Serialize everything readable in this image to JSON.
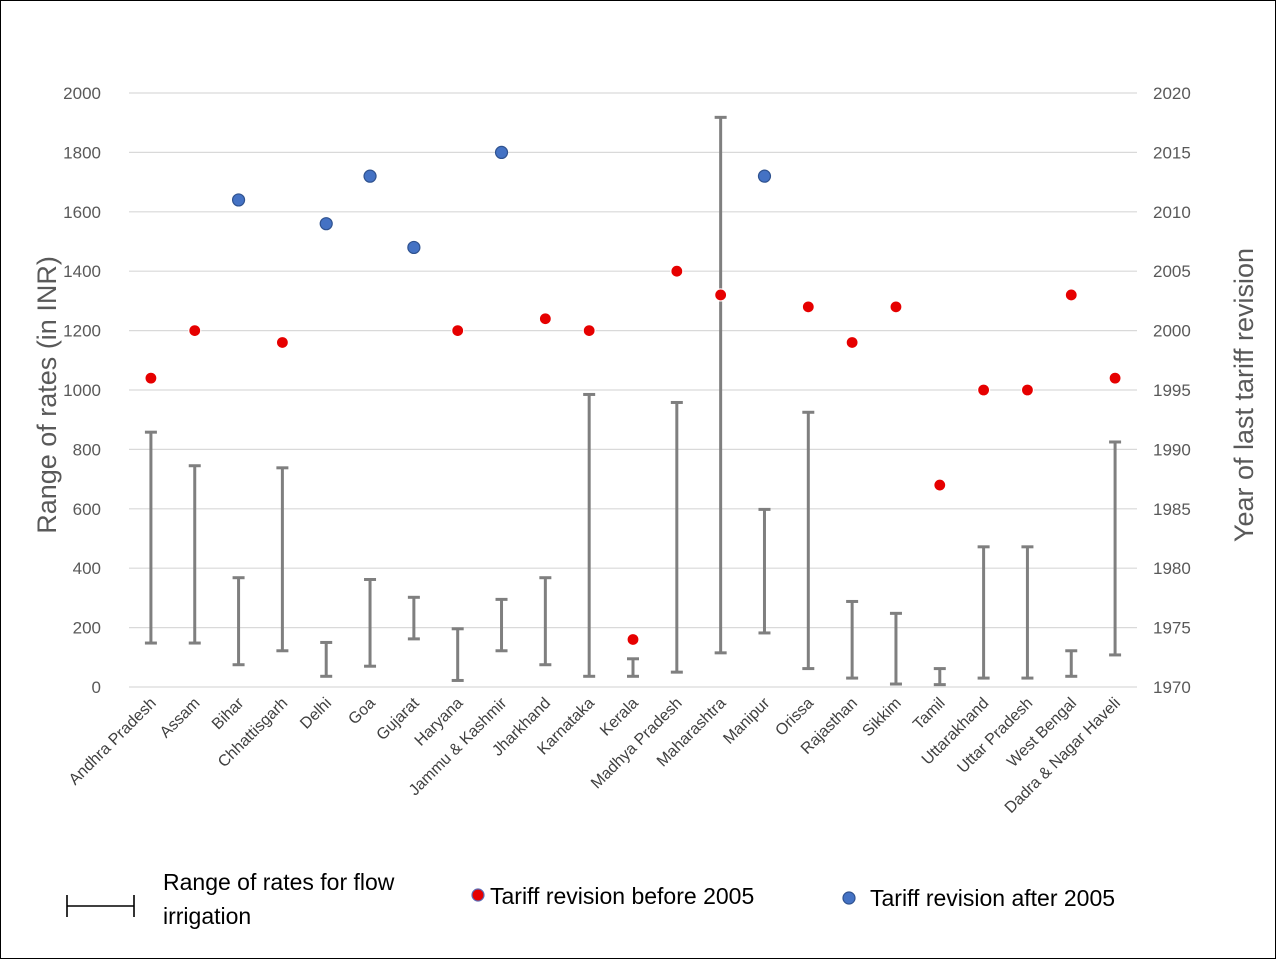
{
  "chart_data": {
    "type": "scatter",
    "title": "",
    "ylabel": "Range of rates (in INR)",
    "y2label": "Year of last tariff revision",
    "ylim": [
      0,
      2000
    ],
    "y2lim": [
      1970,
      2020
    ],
    "yticks": [
      0,
      200,
      400,
      600,
      800,
      1000,
      1200,
      1400,
      1600,
      1800,
      2000
    ],
    "y2ticks": [
      1970,
      1975,
      1980,
      1985,
      1990,
      1995,
      2000,
      2005,
      2010,
      2015,
      2020
    ],
    "grid": true,
    "categories": [
      "Andhra Pradesh",
      "Assam",
      "Bihar",
      "Chhattisgarh",
      "Delhi",
      "Goa",
      "Gujarat",
      "Haryana",
      "Jammu & Kashmir",
      "Jharkhand",
      "Karnataka",
      "Kerala",
      "Madhya Pradesh",
      "Maharashtra",
      "Manipur",
      "Orissa",
      "Rajasthan",
      "Sikkim",
      "Tamil",
      "Uttarakhand",
      "Uttar Pradesh",
      "West Bengal",
      "Dadra & Nagar Haveli"
    ],
    "ranges": [
      [
        148,
        858
      ],
      [
        148,
        745
      ],
      [
        75,
        368
      ],
      [
        122,
        738
      ],
      [
        36,
        150
      ],
      [
        70,
        362
      ],
      [
        162,
        302
      ],
      [
        22,
        196
      ],
      [
        122,
        295
      ],
      [
        75,
        368
      ],
      [
        36,
        985
      ],
      [
        36,
        95
      ],
      [
        50,
        958
      ],
      [
        115,
        1918
      ],
      [
        182,
        598
      ],
      [
        62,
        925
      ],
      [
        30,
        288
      ],
      [
        10,
        248
      ],
      [
        8,
        62
      ],
      [
        30,
        472
      ],
      [
        30,
        472
      ],
      [
        36,
        122
      ],
      [
        108,
        825
      ]
    ],
    "revision_years": [
      1996,
      2000,
      2011,
      1999,
      2009,
      2013,
      2007,
      2000,
      2015,
      2001,
      2000,
      1974,
      2005,
      2003,
      2013,
      2002,
      1999,
      2002,
      1987,
      1995,
      1995,
      2003,
      1996
    ],
    "legend": {
      "range_label_line1": "Range of rates for flow",
      "range_label_line2": "irrigation",
      "before_label": "Tariff revision before 2005",
      "after_label": "Tariff revision after 2005",
      "placement": "bottom"
    },
    "colors": {
      "before": "#e60000",
      "after": "#4472c4",
      "range": "#7f7f7f",
      "grid": "#d9d9d9"
    }
  }
}
